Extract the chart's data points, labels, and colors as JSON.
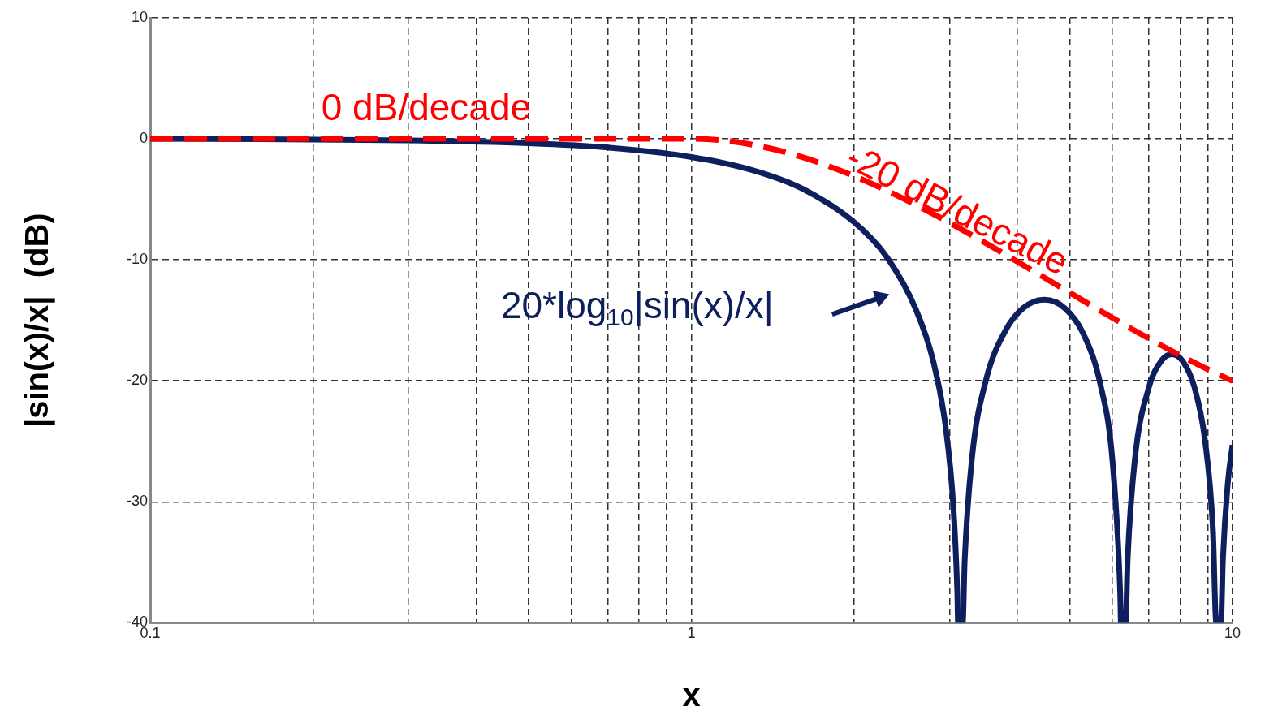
{
  "chart_data": {
    "type": "line",
    "xlabel": "x",
    "ylabel": "|sin(x)/x|  (dB)",
    "log": "x",
    "grid": true,
    "marker": "none",
    "legend": false,
    "xlim": [
      0.1,
      10
    ],
    "xticks": [
      0.1,
      {
        "value": 0.2,
        "label": null
      },
      {
        "value": 0.3,
        "label": null
      },
      {
        "value": 0.4,
        "label": null
      },
      {
        "value": 0.5,
        "label": null
      },
      {
        "value": 0.6,
        "label": null
      },
      {
        "value": 0.7,
        "label": null
      },
      {
        "value": 0.8,
        "label": null
      },
      {
        "value": 0.9,
        "label": null
      },
      1,
      {
        "value": 2,
        "label": null
      },
      {
        "value": 3,
        "label": null
      },
      {
        "value": 4,
        "label": null
      },
      {
        "value": 5,
        "label": null
      },
      {
        "value": 6,
        "label": null
      },
      {
        "value": 7,
        "label": null
      },
      {
        "value": 8,
        "label": null
      },
      {
        "value": 9,
        "label": null
      },
      10
    ],
    "ylim": [
      -40,
      10
    ],
    "yticks": [
      -40,
      -30,
      -20,
      -10,
      0,
      10
    ],
    "series": [
      {
        "color": "#0d1f5c",
        "line_style": "solid",
        "x": [
          0.1,
          0.2,
          0.3,
          0.5,
          0.7,
          1,
          1.3,
          1.6,
          2,
          2.3,
          2.6,
          2.8,
          2.95,
          3.05,
          3.1,
          3.11,
          3.173,
          3.2,
          3.3,
          3.5,
          3.8,
          4.1,
          4.49,
          4.9,
          5.3,
          5.7,
          6.0,
          6.2,
          6.22,
          6.346,
          6.4,
          6.6,
          7.0,
          7.4,
          7.725,
          8.1,
          8.5,
          8.9,
          9.2,
          9.33,
          9.52,
          9.6,
          9.8,
          10
        ],
        "values": [
          0,
          -0.06,
          -0.13,
          -0.37,
          -0.72,
          -1.5,
          -2.6,
          -4.1,
          -6.9,
          -9.8,
          -14.1,
          -18.4,
          -23.8,
          -30.5,
          -37.4,
          -40,
          -40,
          -34.8,
          -26.4,
          -20,
          -15.9,
          -14,
          -13.3,
          -14,
          -16.1,
          -20.3,
          -26.6,
          -37.5,
          -40,
          -40,
          -34.8,
          -26.5,
          -20.6,
          -18.3,
          -17.8,
          -18.4,
          -20.5,
          -25,
          -32.3,
          -40,
          -40,
          -34.8,
          -28.5,
          -25.3
        ]
      },
      {
        "color": "#ff0000",
        "line_style": "dashed",
        "x": [
          0.1,
          1,
          10
        ],
        "values": [
          0,
          0,
          -20
        ]
      }
    ],
    "annotations": [
      "0 dB/decade",
      "-20 dB/decade",
      "20*log$_{10}$|sin(x)/x|"
    ]
  }
}
